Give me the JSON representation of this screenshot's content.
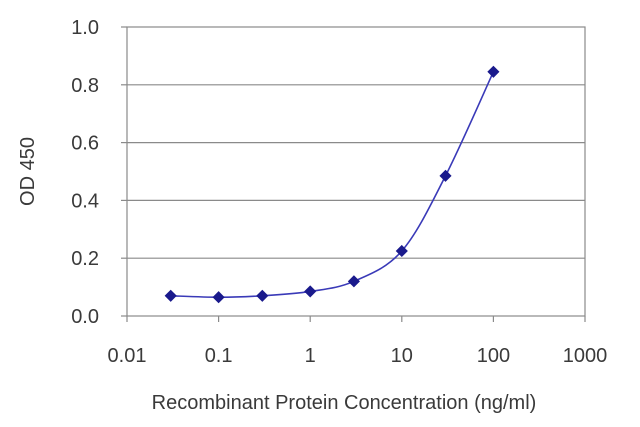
{
  "chart_data": {
    "type": "scatter",
    "title": "",
    "xlabel": "Recombinant Protein Concentration (ng/ml)",
    "ylabel": "OD 450",
    "x_scale": "log",
    "xlim": [
      0.01,
      1000
    ],
    "ylim": [
      0.0,
      1.0
    ],
    "x_ticks": [
      0.01,
      0.1,
      1,
      10,
      100,
      1000
    ],
    "x_tick_labels": [
      "0.01",
      "0.1",
      "1",
      "10",
      "100",
      "1000"
    ],
    "y_ticks": [
      0.0,
      0.2,
      0.4,
      0.6,
      0.8,
      1.0
    ],
    "y_tick_labels": [
      "0.0",
      "0.2",
      "0.4",
      "0.6",
      "0.8",
      "1.0"
    ],
    "grid": "horizontal",
    "legend": "none",
    "series": [
      {
        "x": [
          0.03,
          0.1,
          0.3,
          1,
          3,
          10,
          30,
          100
        ],
        "y": [
          0.07,
          0.065,
          0.07,
          0.085,
          0.12,
          0.225,
          0.485,
          0.845
        ],
        "marker": "diamond",
        "color": "#1a1a8c",
        "fitted_curve": true
      }
    ]
  }
}
